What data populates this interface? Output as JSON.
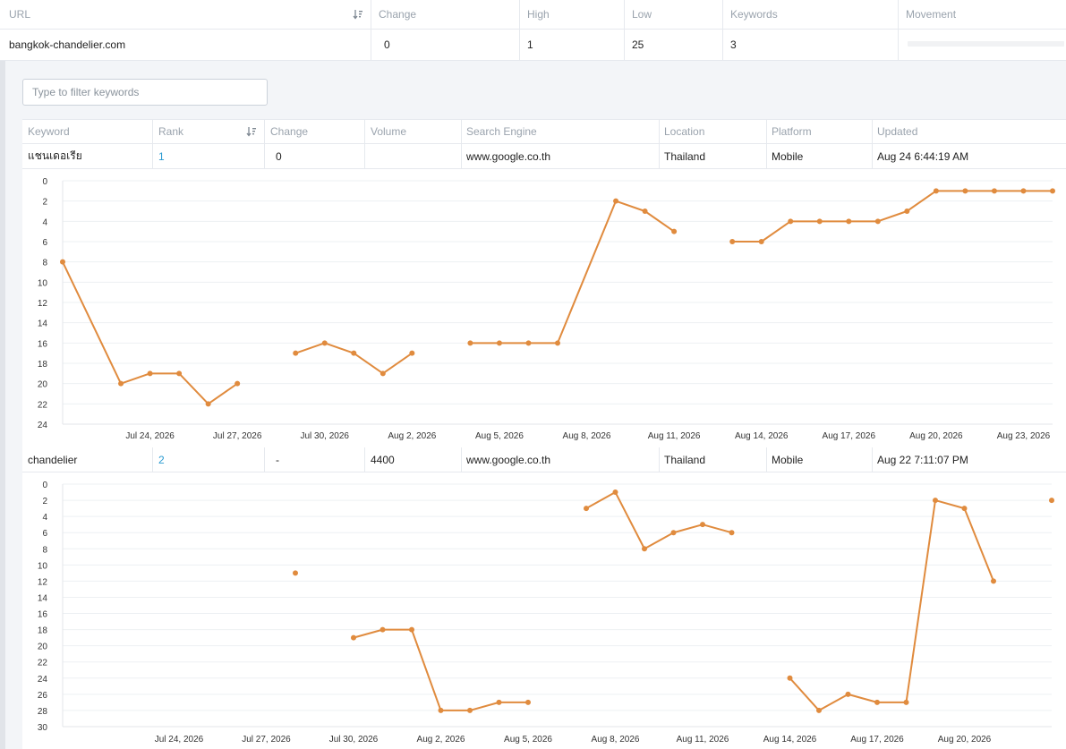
{
  "top_table": {
    "headers": {
      "url": "URL",
      "change": "Change",
      "high": "High",
      "low": "Low",
      "keywords": "Keywords",
      "movement": "Movement"
    },
    "row": {
      "url": "bangkok-chandelier.com",
      "change": "0",
      "high": "1",
      "low": "25",
      "keywords": "3"
    }
  },
  "filter": {
    "placeholder": "Type to filter keywords"
  },
  "keyword_table": {
    "headers": {
      "keyword": "Keyword",
      "rank": "Rank",
      "change": "Change",
      "volume": "Volume",
      "search_engine": "Search Engine",
      "location": "Location",
      "platform": "Platform",
      "updated": "Updated"
    },
    "rows": [
      {
        "keyword": "แชนเดอเรีย",
        "rank": "1",
        "change": "0",
        "volume": "",
        "search_engine": "www.google.co.th",
        "location": "Thailand",
        "platform": "Mobile",
        "updated": "Aug 24 6:44:19 AM"
      },
      {
        "keyword": "chandelier",
        "rank": "2",
        "change": "-",
        "volume": "4400",
        "search_engine": "www.google.co.th",
        "location": "Thailand",
        "platform": "Mobile",
        "updated": "Aug 22 7:11:07 PM"
      }
    ]
  },
  "colors": {
    "line": "#e08b3e",
    "grid": "#edf0f3",
    "axis_text": "#333333",
    "link": "#2b9bd1"
  },
  "chart_data": [
    {
      "type": "line",
      "y_reversed": true,
      "ylim": [
        0,
        24
      ],
      "yticks": [
        0,
        2,
        4,
        6,
        8,
        10,
        12,
        14,
        16,
        18,
        20,
        22,
        24
      ],
      "xlim": [
        "2026-07-21",
        "2026-08-24"
      ],
      "xticks": [
        "Jul 24, 2026",
        "Jul 27, 2026",
        "Jul 30, 2026",
        "Aug 2, 2026",
        "Aug 5, 2026",
        "Aug 8, 2026",
        "Aug 11, 2026",
        "Aug 14, 2026",
        "Aug 17, 2026",
        "Aug 20, 2026",
        "Aug 23, 2026"
      ],
      "grid": true,
      "points": [
        {
          "x": "2026-07-21",
          "y": 8
        },
        {
          "x": "2026-07-23",
          "y": 20
        },
        {
          "x": "2026-07-24",
          "y": 19
        },
        {
          "x": "2026-07-25",
          "y": 19
        },
        {
          "x": "2026-07-26",
          "y": 22
        },
        {
          "x": "2026-07-27",
          "y": 20
        },
        {
          "x": "2026-07-28",
          "y": null
        },
        {
          "x": "2026-07-29",
          "y": 17
        },
        {
          "x": "2026-07-30",
          "y": 16
        },
        {
          "x": "2026-07-31",
          "y": 17
        },
        {
          "x": "2026-08-01",
          "y": 19
        },
        {
          "x": "2026-08-02",
          "y": 17
        },
        {
          "x": "2026-08-03",
          "y": null
        },
        {
          "x": "2026-08-04",
          "y": 16
        },
        {
          "x": "2026-08-05",
          "y": 16
        },
        {
          "x": "2026-08-06",
          "y": 16
        },
        {
          "x": "2026-08-07",
          "y": 16
        },
        {
          "x": "2026-08-09",
          "y": 2
        },
        {
          "x": "2026-08-10",
          "y": 3
        },
        {
          "x": "2026-08-11",
          "y": 5
        },
        {
          "x": "2026-08-12",
          "y": null
        },
        {
          "x": "2026-08-13",
          "y": 6
        },
        {
          "x": "2026-08-14",
          "y": 6
        },
        {
          "x": "2026-08-15",
          "y": 4
        },
        {
          "x": "2026-08-16",
          "y": 4
        },
        {
          "x": "2026-08-17",
          "y": 4
        },
        {
          "x": "2026-08-18",
          "y": 4
        },
        {
          "x": "2026-08-19",
          "y": 3
        },
        {
          "x": "2026-08-20",
          "y": 1
        },
        {
          "x": "2026-08-21",
          "y": 1
        },
        {
          "x": "2026-08-22",
          "y": 1
        },
        {
          "x": "2026-08-23",
          "y": 1
        },
        {
          "x": "2026-08-24",
          "y": 1
        }
      ]
    },
    {
      "type": "line",
      "y_reversed": true,
      "ylim": [
        0,
        30
      ],
      "yticks": [
        0,
        2,
        4,
        6,
        8,
        10,
        12,
        14,
        16,
        18,
        20,
        22,
        24,
        26,
        28,
        30
      ],
      "xlim": [
        "2026-07-20",
        "2026-08-23"
      ],
      "xticks": [
        "Jul 24, 2026",
        "Jul 27, 2026",
        "Jul 30, 2026",
        "Aug 2, 2026",
        "Aug 5, 2026",
        "Aug 8, 2026",
        "Aug 11, 2026",
        "Aug 14, 2026",
        "Aug 17, 2026",
        "Aug 20, 2026"
      ],
      "grid": true,
      "points": [
        {
          "x": "2026-07-28",
          "y": 11
        },
        {
          "x": "2026-07-29",
          "y": null
        },
        {
          "x": "2026-07-30",
          "y": 19
        },
        {
          "x": "2026-07-31",
          "y": 18
        },
        {
          "x": "2026-08-01",
          "y": 18
        },
        {
          "x": "2026-08-02",
          "y": 28
        },
        {
          "x": "2026-08-03",
          "y": 28
        },
        {
          "x": "2026-08-04",
          "y": 27
        },
        {
          "x": "2026-08-05",
          "y": 27
        },
        {
          "x": "2026-08-06",
          "y": null
        },
        {
          "x": "2026-08-07",
          "y": 3
        },
        {
          "x": "2026-08-08",
          "y": 1
        },
        {
          "x": "2026-08-09",
          "y": 8
        },
        {
          "x": "2026-08-10",
          "y": 6
        },
        {
          "x": "2026-08-11",
          "y": 5
        },
        {
          "x": "2026-08-12",
          "y": 6
        },
        {
          "x": "2026-08-13",
          "y": null
        },
        {
          "x": "2026-08-14",
          "y": 24
        },
        {
          "x": "2026-08-15",
          "y": 28
        },
        {
          "x": "2026-08-16",
          "y": 26
        },
        {
          "x": "2026-08-17",
          "y": 27
        },
        {
          "x": "2026-08-18",
          "y": 27
        },
        {
          "x": "2026-08-19",
          "y": 2
        },
        {
          "x": "2026-08-20",
          "y": 3
        },
        {
          "x": "2026-08-21",
          "y": 12
        },
        {
          "x": "2026-08-22",
          "y": null
        },
        {
          "x": "2026-08-23",
          "y": 2
        }
      ]
    }
  ]
}
